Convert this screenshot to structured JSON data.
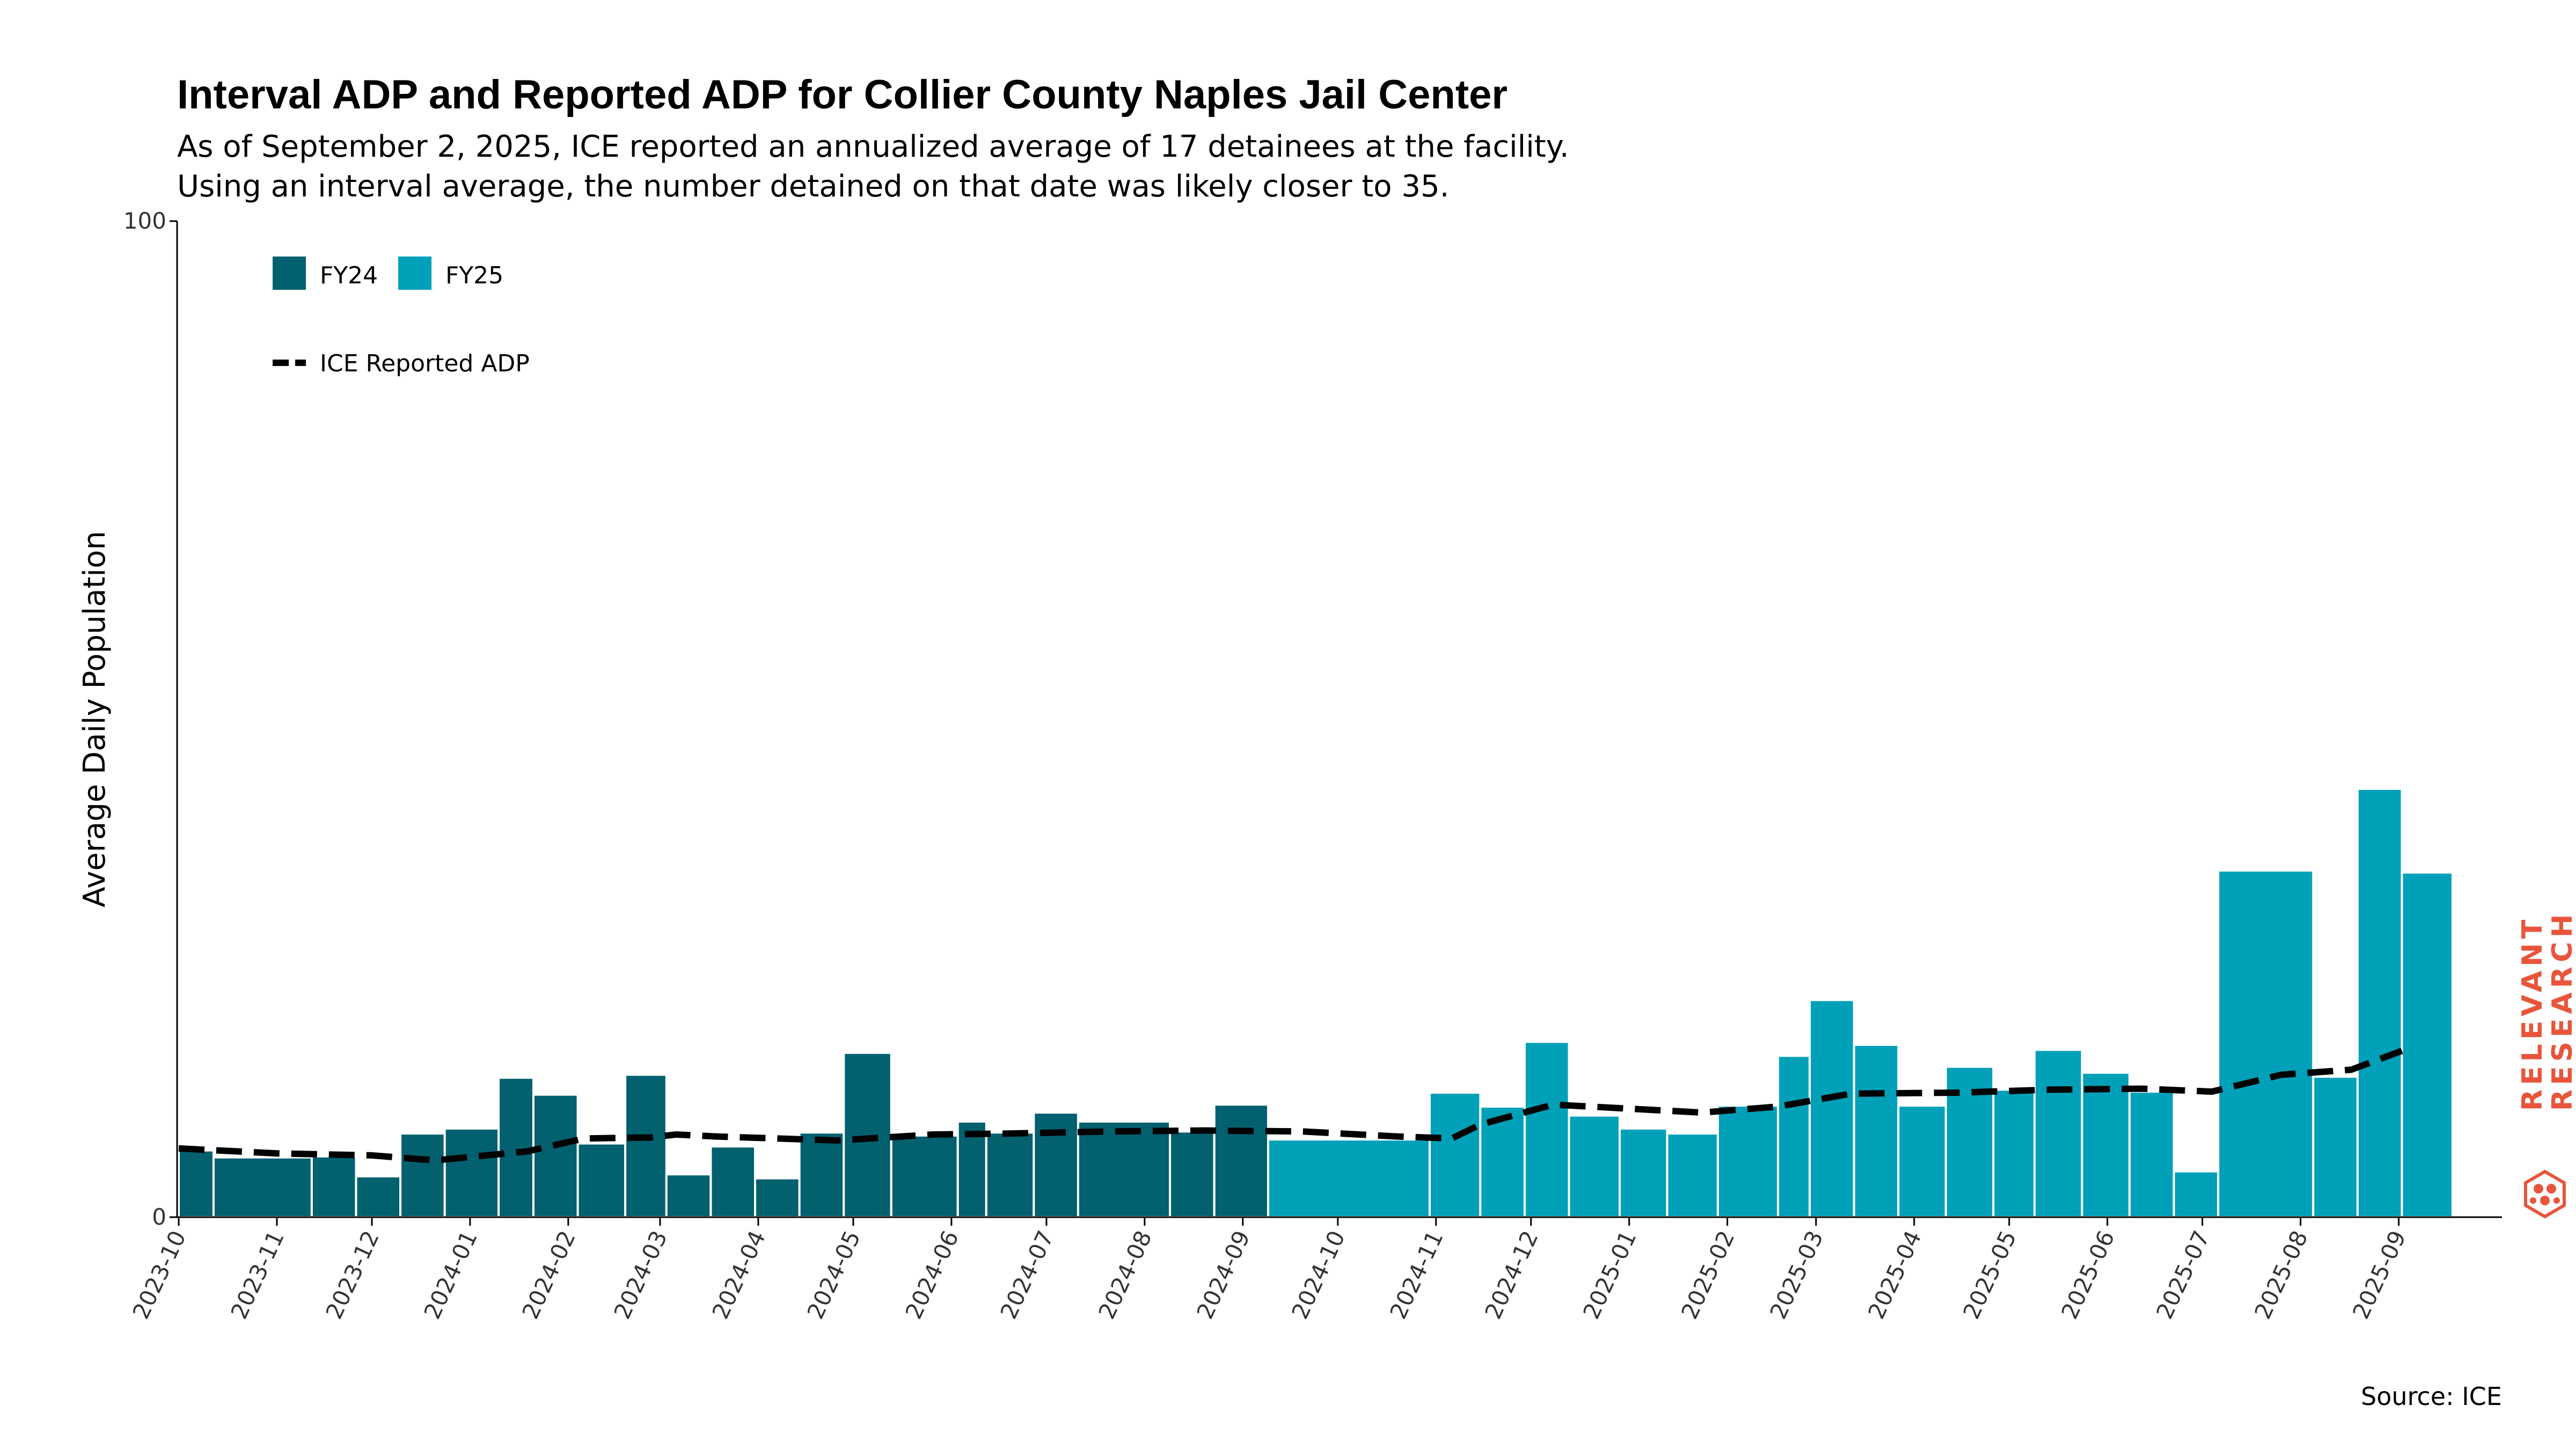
{
  "colors": {
    "fy24": "#02606f",
    "fy25": "#00a0b8",
    "adp_line": "#000000",
    "brand": "#e8553b"
  },
  "chart_data": {
    "type": "bar",
    "title": "Interval ADP and Reported ADP for Collier County Naples Jail Center",
    "subtitle_lines": [
      "As of September 2, 2025, ICE reported an annualized average of 17 detainees at the facility.",
      "Using an interval average, the number detained on that date was likely closer to 35."
    ],
    "ylabel": "Average Daily Population",
    "xlabel": "",
    "ylim": [
      0,
      100
    ],
    "y_ticks": [
      0,
      100
    ],
    "x_ticks": [
      "2023-10",
      "2023-11",
      "2023-12",
      "2024-01",
      "2024-02",
      "2024-03",
      "2024-04",
      "2024-05",
      "2024-06",
      "2024-07",
      "2024-08",
      "2024-09",
      "2024-10",
      "2024-11",
      "2024-12",
      "2025-01",
      "2025-02",
      "2025-03",
      "2025-04",
      "2025-05",
      "2025-06",
      "2025-07",
      "2025-08",
      "2025-09"
    ],
    "legend": {
      "placement": "top-left",
      "entries": [
        {
          "label": "FY24",
          "color_key": "fy24"
        },
        {
          "label": "FY25",
          "color_key": "fy25"
        },
        {
          "label": "ICE Reported ADP",
          "style": "dashed-line"
        }
      ]
    },
    "interval_series": {
      "name": "Interval ADP",
      "bars": [
        {
          "start": "2023-10-01",
          "end": "2023-10-12",
          "value": 6.7,
          "fy": "FY24"
        },
        {
          "start": "2023-10-12",
          "end": "2023-11-12",
          "value": 6.0,
          "fy": "FY24"
        },
        {
          "start": "2023-11-12",
          "end": "2023-11-26",
          "value": 6.1,
          "fy": "FY24"
        },
        {
          "start": "2023-11-26",
          "end": "2023-12-10",
          "value": 4.1,
          "fy": "FY24"
        },
        {
          "start": "2023-12-10",
          "end": "2023-12-24",
          "value": 8.4,
          "fy": "FY24"
        },
        {
          "start": "2023-12-24",
          "end": "2024-01-10",
          "value": 8.9,
          "fy": "FY24"
        },
        {
          "start": "2024-01-10",
          "end": "2024-01-21",
          "value": 14.0,
          "fy": "FY24"
        },
        {
          "start": "2024-01-21",
          "end": "2024-02-04",
          "value": 12.3,
          "fy": "FY24"
        },
        {
          "start": "2024-02-04",
          "end": "2024-02-19",
          "value": 7.4,
          "fy": "FY24"
        },
        {
          "start": "2024-02-19",
          "end": "2024-03-03",
          "value": 14.3,
          "fy": "FY24"
        },
        {
          "start": "2024-03-03",
          "end": "2024-03-17",
          "value": 4.3,
          "fy": "FY24"
        },
        {
          "start": "2024-03-17",
          "end": "2024-03-31",
          "value": 7.1,
          "fy": "FY24"
        },
        {
          "start": "2024-03-31",
          "end": "2024-04-14",
          "value": 3.9,
          "fy": "FY24"
        },
        {
          "start": "2024-04-14",
          "end": "2024-04-28",
          "value": 8.5,
          "fy": "FY24"
        },
        {
          "start": "2024-04-28",
          "end": "2024-05-13",
          "value": 16.5,
          "fy": "FY24"
        },
        {
          "start": "2024-05-13",
          "end": "2024-06-03",
          "value": 8.2,
          "fy": "FY24"
        },
        {
          "start": "2024-06-03",
          "end": "2024-06-12",
          "value": 9.6,
          "fy": "FY24"
        },
        {
          "start": "2024-06-12",
          "end": "2024-06-27",
          "value": 8.5,
          "fy": "FY24"
        },
        {
          "start": "2024-06-27",
          "end": "2024-07-11",
          "value": 10.5,
          "fy": "FY24"
        },
        {
          "start": "2024-07-11",
          "end": "2024-08-09",
          "value": 9.6,
          "fy": "FY24"
        },
        {
          "start": "2024-08-09",
          "end": "2024-08-23",
          "value": 8.6,
          "fy": "FY24"
        },
        {
          "start": "2024-08-23",
          "end": "2024-09-09",
          "value": 11.3,
          "fy": "FY24"
        },
        {
          "start": "2024-09-09",
          "end": "2024-10-30",
          "value": 7.8,
          "fy": "FY25"
        },
        {
          "start": "2024-10-30",
          "end": "2024-11-15",
          "value": 12.5,
          "fy": "FY25"
        },
        {
          "start": "2024-11-15",
          "end": "2024-11-29",
          "value": 11.1,
          "fy": "FY25"
        },
        {
          "start": "2024-11-29",
          "end": "2024-12-13",
          "value": 17.6,
          "fy": "FY25"
        },
        {
          "start": "2024-12-13",
          "end": "2024-12-29",
          "value": 10.2,
          "fy": "FY25"
        },
        {
          "start": "2024-12-29",
          "end": "2025-01-13",
          "value": 8.9,
          "fy": "FY25"
        },
        {
          "start": "2025-01-13",
          "end": "2025-01-29",
          "value": 8.4,
          "fy": "FY25"
        },
        {
          "start": "2025-01-29",
          "end": "2025-02-17",
          "value": 11.2,
          "fy": "FY25"
        },
        {
          "start": "2025-02-17",
          "end": "2025-02-27",
          "value": 16.2,
          "fy": "FY25"
        },
        {
          "start": "2025-02-27",
          "end": "2025-03-13",
          "value": 21.8,
          "fy": "FY25"
        },
        {
          "start": "2025-03-13",
          "end": "2025-03-27",
          "value": 17.3,
          "fy": "FY25"
        },
        {
          "start": "2025-03-27",
          "end": "2025-04-11",
          "value": 11.2,
          "fy": "FY25"
        },
        {
          "start": "2025-04-11",
          "end": "2025-04-26",
          "value": 15.1,
          "fy": "FY25"
        },
        {
          "start": "2025-04-26",
          "end": "2025-05-09",
          "value": 12.8,
          "fy": "FY25"
        },
        {
          "start": "2025-05-09",
          "end": "2025-05-24",
          "value": 16.8,
          "fy": "FY25"
        },
        {
          "start": "2025-05-24",
          "end": "2025-06-08",
          "value": 14.5,
          "fy": "FY25"
        },
        {
          "start": "2025-06-08",
          "end": "2025-06-22",
          "value": 12.6,
          "fy": "FY25"
        },
        {
          "start": "2025-06-22",
          "end": "2025-07-06",
          "value": 4.6,
          "fy": "FY25"
        },
        {
          "start": "2025-07-06",
          "end": "2025-08-05",
          "value": 34.8,
          "fy": "FY25"
        },
        {
          "start": "2025-08-05",
          "end": "2025-08-19",
          "value": 14.1,
          "fy": "FY25"
        },
        {
          "start": "2025-08-19",
          "end": "2025-09-02",
          "value": 43.0,
          "fy": "FY25"
        },
        {
          "start": "2025-09-02",
          "end": "2025-09-18",
          "value": 34.6,
          "fy": "FY25"
        }
      ]
    },
    "line_series": {
      "name": "ICE Reported ADP",
      "style": "dashed",
      "points": [
        {
          "x": "2023-10-01",
          "y": 6.9
        },
        {
          "x": "2023-11-01",
          "y": 6.4
        },
        {
          "x": "2023-12-01",
          "y": 6.2
        },
        {
          "x": "2023-12-21",
          "y": 5.7
        },
        {
          "x": "2024-01-19",
          "y": 6.6
        },
        {
          "x": "2024-02-06",
          "y": 7.9
        },
        {
          "x": "2024-02-27",
          "y": 8.0
        },
        {
          "x": "2024-03-06",
          "y": 8.3
        },
        {
          "x": "2024-03-19",
          "y": 8.1
        },
        {
          "x": "2024-04-26",
          "y": 7.7
        },
        {
          "x": "2024-05-26",
          "y": 8.3
        },
        {
          "x": "2024-06-20",
          "y": 8.4
        },
        {
          "x": "2024-07-20",
          "y": 8.6
        },
        {
          "x": "2024-08-20",
          "y": 8.7
        },
        {
          "x": "2024-09-20",
          "y": 8.6
        },
        {
          "x": "2024-10-20",
          "y": 8.1
        },
        {
          "x": "2024-11-06",
          "y": 7.9
        },
        {
          "x": "2024-11-15",
          "y": 9.3
        },
        {
          "x": "2024-12-08",
          "y": 11.3
        },
        {
          "x": "2025-01-24",
          "y": 10.5
        },
        {
          "x": "2025-02-17",
          "y": 11.1
        },
        {
          "x": "2025-03-12",
          "y": 12.4
        },
        {
          "x": "2025-04-15",
          "y": 12.5
        },
        {
          "x": "2025-05-14",
          "y": 12.8
        },
        {
          "x": "2025-06-12",
          "y": 12.9
        },
        {
          "x": "2025-07-04",
          "y": 12.6
        },
        {
          "x": "2025-07-26",
          "y": 14.3
        },
        {
          "x": "2025-08-17",
          "y": 14.8
        },
        {
          "x": "2025-09-02",
          "y": 16.7
        }
      ]
    },
    "source": "Source: ICE",
    "brand": "RELEVANT RESEARCH"
  }
}
